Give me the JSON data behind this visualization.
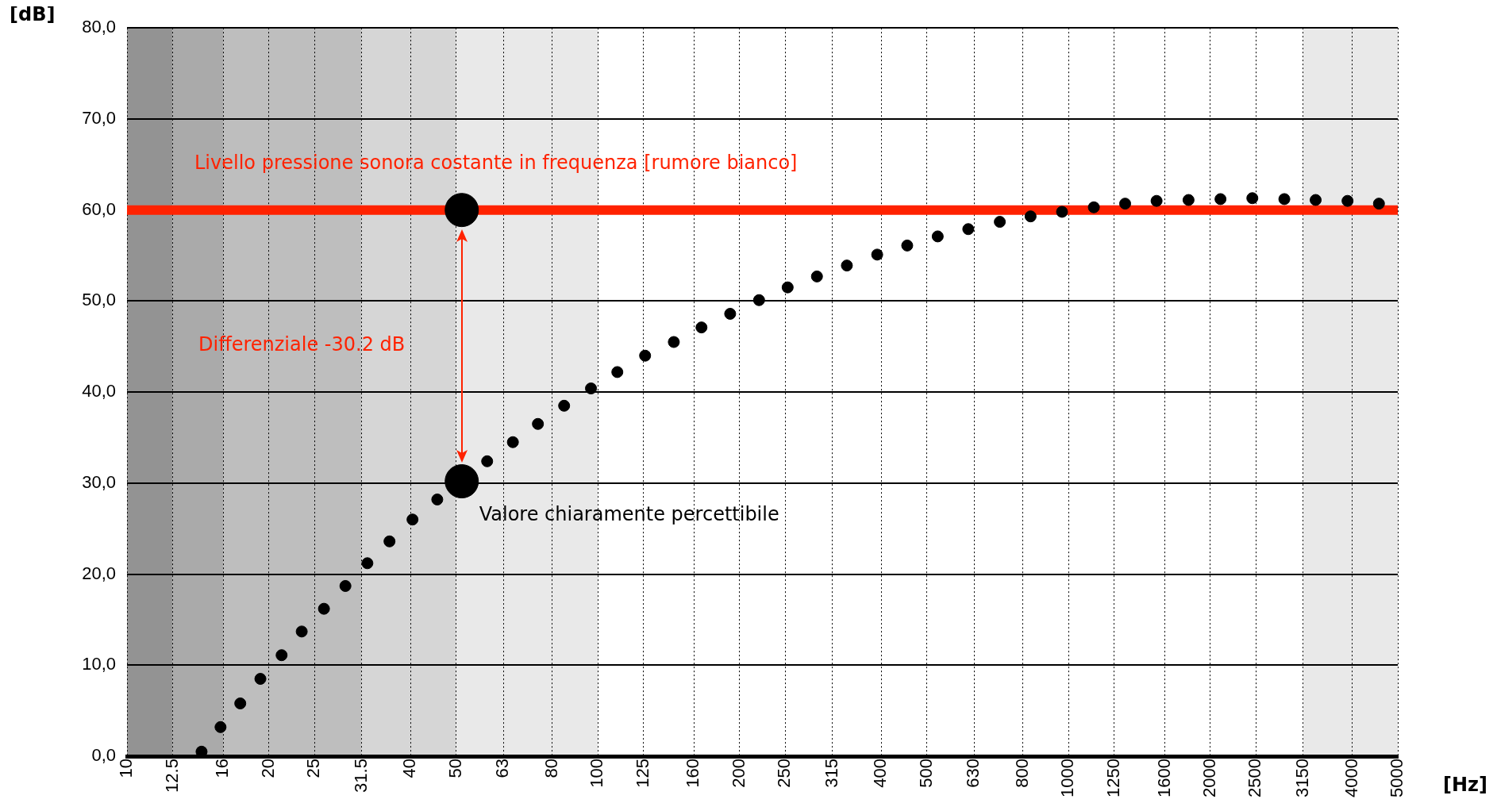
{
  "chart_data": {
    "type": "scatter",
    "ylabel": "[dB]",
    "xlabel": "[Hz]",
    "log": "x",
    "grid": true,
    "legend": false,
    "marker": "circle",
    "xlim": [
      10,
      5000
    ],
    "xticks": [
      10,
      {
        "value": 12.5,
        "label": "12.5"
      },
      16,
      20,
      25,
      {
        "value": 31.5,
        "label": "31.5"
      },
      40,
      50,
      63,
      80,
      100,
      125,
      160,
      200,
      250,
      315,
      400,
      500,
      630,
      800,
      1000,
      1250,
      1600,
      2000,
      2500,
      3150,
      4000,
      5000
    ],
    "ylim": [
      0,
      80
    ],
    "yticks": [
      {
        "value": 0,
        "label": "0,0"
      },
      {
        "value": 10,
        "label": "10,0"
      },
      {
        "value": 20,
        "label": "20,0"
      },
      {
        "value": 30,
        "label": "30,0"
      },
      {
        "value": 40,
        "label": "40,0"
      },
      {
        "value": 50,
        "label": "50,0"
      },
      {
        "value": 60,
        "label": "60,0"
      },
      {
        "value": 70,
        "label": "70,0"
      },
      {
        "value": 80,
        "label": "80,0"
      }
    ],
    "bands": [
      {
        "axis": "x",
        "from": 10,
        "to": 12.5,
        "color": "#939393"
      },
      {
        "axis": "x",
        "from": 12.5,
        "to": 16,
        "color": "#aaaaaa"
      },
      {
        "axis": "x",
        "from": 16,
        "to": 31.5,
        "color": "#bebebe"
      },
      {
        "axis": "x",
        "from": 31.5,
        "to": 50,
        "color": "#d6d6d6"
      },
      {
        "axis": "x",
        "from": 50,
        "to": 100,
        "color": "#e9e9e9"
      },
      {
        "axis": "x",
        "from": 3150,
        "to": 5000,
        "color": "#e9e9e9"
      }
    ],
    "ref_lines": [
      {
        "axis": "y",
        "value": 60,
        "label": "Livello pressione sonora costante in frequenza [rumore bianco]",
        "color": "#ff2200"
      }
    ],
    "series": [
      {
        "color": "#000000",
        "x": [
          14.4,
          15.8,
          17.4,
          19.2,
          21.3,
          23.5,
          26.2,
          29.1,
          32.4,
          36.1,
          40.4,
          45.6,
          58.2,
          66.0,
          74.6,
          84.8,
          96.7,
          110,
          126,
          145,
          166,
          191,
          220,
          253,
          292,
          338,
          392,
          454,
          527,
          612,
          714,
          830,
          968,
          1131,
          1318,
          1537,
          1797,
          2101,
          2455,
          2871,
          3346,
          3911,
          4560
        ],
        "values": [
          0.5,
          3.2,
          5.8,
          8.5,
          11.1,
          13.7,
          16.2,
          18.7,
          21.2,
          23.6,
          26.0,
          28.2,
          32.4,
          34.5,
          36.5,
          38.5,
          40.4,
          42.2,
          44.0,
          45.5,
          47.1,
          48.6,
          50.1,
          51.5,
          52.7,
          53.9,
          55.1,
          56.1,
          57.1,
          57.9,
          58.7,
          59.3,
          59.8,
          60.3,
          60.7,
          61.0,
          61.1,
          61.2,
          61.3,
          61.2,
          61.1,
          61.0,
          60.7
        ]
      },
      {
        "color": "#000000",
        "x": [
          51.4,
          51.4
        ],
        "values": [
          60,
          30.2
        ]
      }
    ],
    "annotations": [
      "Differenziale -30.2 dB",
      {
        "text": "Valore chiaramente percettibile",
        "x": 51.4,
        "y": 30.2
      }
    ]
  }
}
